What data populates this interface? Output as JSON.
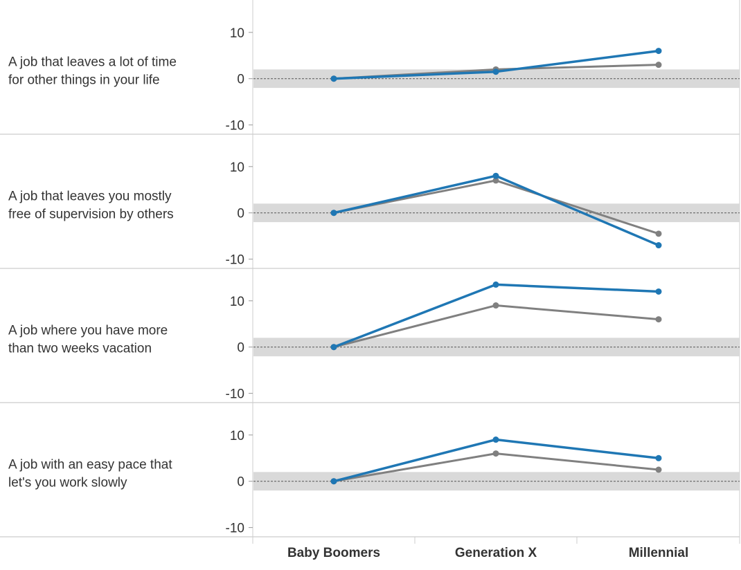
{
  "chart_data": {
    "type": "line",
    "categories": [
      "Baby Boomers",
      "Generation X",
      "Millennial"
    ],
    "yticks": [
      10,
      0,
      -10
    ],
    "ylim": [
      -12,
      17
    ],
    "grid": false,
    "reference_line": 0,
    "reference_band": [
      -2,
      2
    ],
    "colors": {
      "blue": "#1f77b4",
      "gray": "#808080",
      "band": "#d9d9d9",
      "divider": "#cccccc"
    },
    "panels": [
      {
        "label_lines": [
          "A job that leaves a lot of time",
          "for other things in your life"
        ],
        "series": [
          {
            "name": "gray",
            "values": [
              0,
              2,
              3
            ]
          },
          {
            "name": "blue",
            "values": [
              0,
              1.5,
              6
            ]
          }
        ]
      },
      {
        "label_lines": [
          "A job that leaves you mostly",
          "free of supervision by others"
        ],
        "series": [
          {
            "name": "gray",
            "values": [
              0,
              7,
              -4.5
            ]
          },
          {
            "name": "blue",
            "values": [
              0,
              8,
              -7
            ]
          }
        ]
      },
      {
        "label_lines": [
          "A job where you have more",
          "than two weeks vacation"
        ],
        "series": [
          {
            "name": "gray",
            "values": [
              0,
              9,
              6
            ]
          },
          {
            "name": "blue",
            "values": [
              0,
              13.5,
              12
            ]
          }
        ]
      },
      {
        "label_lines": [
          "A job with an easy pace that",
          "let's you work slowly"
        ],
        "series": [
          {
            "name": "gray",
            "values": [
              0,
              6,
              2.5
            ]
          },
          {
            "name": "blue",
            "values": [
              0,
              9,
              5
            ]
          }
        ]
      }
    ]
  }
}
